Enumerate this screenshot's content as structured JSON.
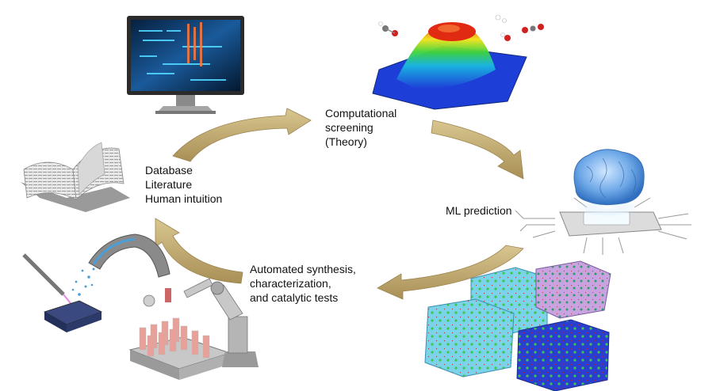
{
  "nodes": {
    "computational": {
      "lines": [
        "Computational",
        "screening",
        "(Theory)"
      ]
    },
    "ml": {
      "lines": [
        "ML prediction"
      ]
    },
    "automated": {
      "lines": [
        "Automated synthesis,",
        "characterization,",
        "and catalytic tests"
      ]
    },
    "database": {
      "lines": [
        "Database",
        "Literature",
        "Human intuition"
      ]
    }
  },
  "illustrations": [
    {
      "name": "computer-monitor-icon"
    },
    {
      "name": "energy-surface-icon"
    },
    {
      "name": "ai-brain-chip-icon"
    },
    {
      "name": "crystal-structures-icon"
    },
    {
      "name": "robotic-lab-icon"
    },
    {
      "name": "open-book-icon"
    }
  ],
  "colors": {
    "arrow": "#c8b27a",
    "arrow_dark": "#9c8550",
    "screen": "#0b2a4a",
    "surface_low": "#1d3fd8",
    "surface_high": "#e02a12",
    "brain": "#6fa9e8",
    "crystal_blue": "#2a3fd0",
    "crystal_cyan": "#7ad3e8"
  }
}
